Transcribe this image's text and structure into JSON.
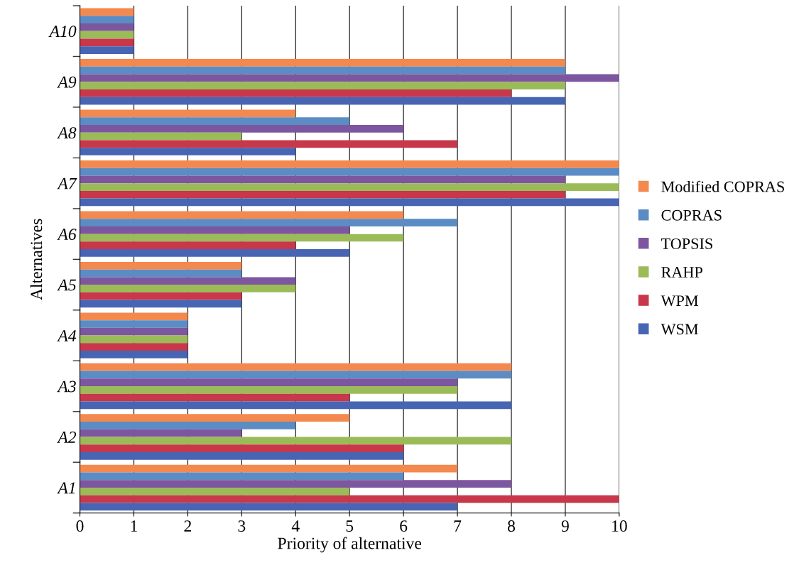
{
  "chart_data": {
    "type": "bar",
    "orientation": "horizontal",
    "xlabel": "Priority of alternative",
    "ylabel": "Alternatives",
    "categories": [
      "A10",
      "A9",
      "A8",
      "A7",
      "A6",
      "A5",
      "A4",
      "A3",
      "A2",
      "A1"
    ],
    "series": [
      {
        "name": "Modified COPRAS",
        "color": "#f4894f",
        "values": [
          1,
          9,
          4,
          10,
          6,
          3,
          2,
          8,
          5,
          7
        ]
      },
      {
        "name": "COPRAS",
        "color": "#5b8cc4",
        "values": [
          1,
          9,
          5,
          10,
          7,
          3,
          2,
          8,
          4,
          6
        ]
      },
      {
        "name": "TOPSIS",
        "color": "#7d56a0",
        "values": [
          1,
          10,
          6,
          9,
          5,
          4,
          2,
          7,
          3,
          8
        ]
      },
      {
        "name": "RAHP",
        "color": "#9bbb59",
        "values": [
          1,
          9,
          3,
          10,
          6,
          4,
          2,
          7,
          8,
          5
        ]
      },
      {
        "name": "WPM",
        "color": "#c8374a",
        "values": [
          1,
          8,
          7,
          9,
          4,
          3,
          2,
          5,
          6,
          10
        ]
      },
      {
        "name": "WSM",
        "color": "#4765b3",
        "values": [
          1,
          9,
          4,
          10,
          5,
          3,
          2,
          8,
          6,
          7
        ]
      }
    ],
    "xlim": [
      0,
      10
    ],
    "xticks": [
      0,
      1,
      2,
      3,
      4,
      5,
      6,
      7,
      8,
      9,
      10
    ],
    "grid": "x",
    "legend": "right"
  }
}
